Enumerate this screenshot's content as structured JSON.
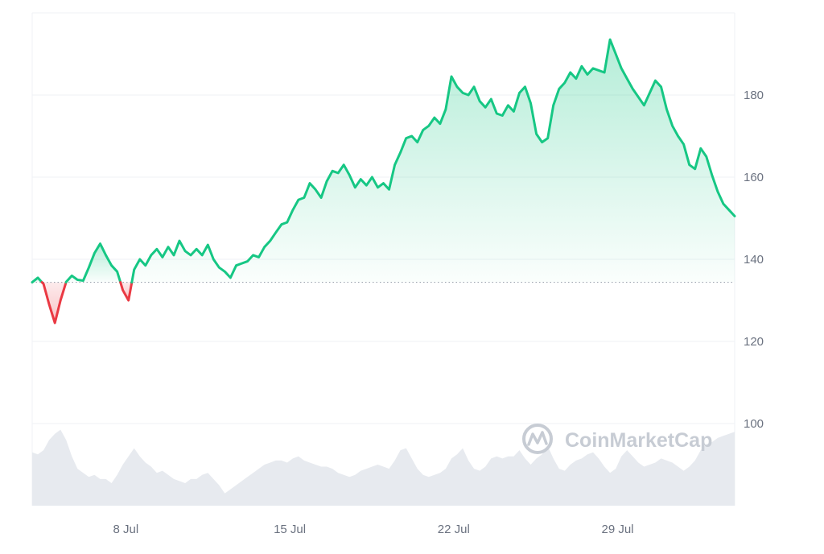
{
  "watermark": "CoinMarketCap",
  "colors": {
    "up": "#16c784",
    "down": "#ea3943",
    "volume": "#e7eaef",
    "grid": "#eff2f5",
    "text": "#6b7280",
    "baseline": "#9ca3af"
  },
  "chart_data": {
    "type": "line",
    "title": "",
    "xlabel": "",
    "ylabel": "",
    "x_ticks": [
      "8 Jul",
      "15 Jul",
      "22 Jul",
      "29 Jul"
    ],
    "y_ticks": [
      100,
      120,
      140,
      160,
      180
    ],
    "ylim": [
      80,
      200
    ],
    "xlim": [
      "4 Jul",
      "3 Aug"
    ],
    "grid": "horizontal",
    "legend": "none",
    "baseline_value": 134.4,
    "series": [
      {
        "values": [
          134.4,
          135.5,
          134.0,
          129.0,
          124.5,
          130.0,
          134.5,
          136.0,
          135.0,
          134.8,
          138.0,
          141.5,
          143.8,
          141.0,
          138.5,
          137.0,
          132.5,
          130.0,
          137.5,
          140.0,
          138.5,
          141.0,
          142.5,
          140.5,
          143.0,
          141.0,
          144.5,
          142.0,
          141.0,
          142.5,
          141.0,
          143.5,
          140.0,
          138.0,
          137.0,
          135.5,
          138.5,
          139.0,
          139.5,
          141.0,
          140.5,
          143.0,
          144.5,
          146.5,
          148.5,
          149.0,
          152.0,
          154.5,
          155.0,
          158.5,
          157.0,
          155.0,
          159.0,
          161.5,
          161.0,
          163.0,
          160.5,
          157.5,
          159.5,
          158.0,
          160.0,
          157.5,
          158.5,
          157.0,
          163.0,
          166.0,
          169.5,
          170.0,
          168.5,
          171.5,
          172.5,
          174.5,
          173.0,
          176.5,
          184.5,
          182.0,
          180.5,
          180.0,
          182.0,
          178.5,
          177.0,
          179.0,
          175.5,
          175.0,
          177.5,
          176.0,
          180.5,
          182.0,
          178.0,
          170.5,
          168.5,
          169.5,
          177.5,
          181.5,
          183.0,
          185.5,
          184.0,
          187.0,
          185.0,
          186.5,
          186.0,
          185.5,
          193.5,
          190.0,
          186.5,
          184.0,
          181.5,
          179.5,
          177.5,
          180.5,
          183.5,
          182.0,
          176.5,
          172.5,
          170.0,
          168.0,
          163.0,
          162.0,
          167.0,
          165.0,
          160.5,
          156.5,
          153.5,
          152.0,
          150.5
        ]
      }
    ],
    "volume": [
      93.0,
      92.5,
      93.5,
      96.0,
      97.5,
      98.5,
      96.0,
      92.0,
      89.0,
      88.0,
      87.0,
      87.5,
      86.5,
      86.5,
      85.5,
      87.5,
      90.0,
      92.0,
      94.0,
      92.0,
      90.5,
      89.5,
      88.0,
      88.5,
      87.5,
      86.5,
      86.0,
      85.5,
      86.5,
      86.5,
      87.5,
      88.0,
      86.5,
      85.0,
      83.0,
      84.0,
      85.0,
      86.0,
      87.0,
      88.0,
      89.0,
      90.0,
      90.5,
      91.0,
      91.0,
      90.5,
      91.5,
      92.0,
      91.0,
      90.5,
      90.0,
      89.5,
      89.5,
      89.0,
      88.0,
      87.5,
      87.0,
      87.5,
      88.5,
      89.0,
      89.5,
      90.0,
      89.5,
      89.0,
      91.0,
      93.5,
      94.0,
      91.5,
      89.0,
      87.5,
      87.0,
      87.5,
      88.0,
      89.0,
      91.5,
      92.5,
      94.0,
      91.0,
      89.0,
      88.5,
      89.5,
      91.5,
      92.0,
      91.5,
      92.0,
      92.0,
      93.5,
      91.5,
      90.0,
      91.5,
      92.5,
      94.5,
      91.5,
      89.0,
      88.5,
      90.0,
      91.0,
      91.5,
      92.5,
      93.0,
      91.5,
      89.5,
      88.0,
      89.0,
      92.0,
      93.5,
      92.0,
      90.5,
      89.5,
      90.0,
      90.5,
      91.5,
      91.0,
      90.5,
      89.5,
      88.5,
      89.5,
      91.0,
      93.5,
      95.0,
      95.5,
      96.5,
      97.0,
      97.5,
      98.0
    ]
  }
}
